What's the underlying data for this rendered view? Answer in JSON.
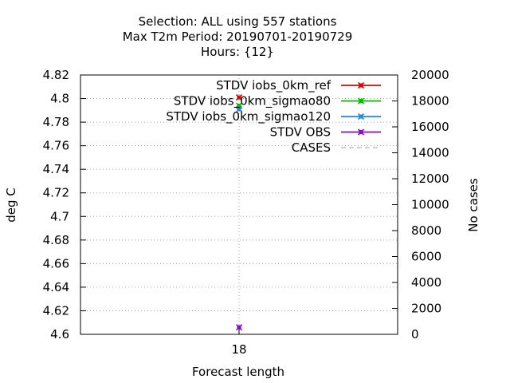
{
  "chart_data": {
    "type": "line",
    "title_lines": [
      "Selection: ALL using   557 stations",
      "Max T2m   Period: 20190701-20190729",
      "Hours: {12}"
    ],
    "xlabel": "Forecast length",
    "ylabel": "deg C",
    "y2label": "No cases",
    "x": [
      18
    ],
    "x_ticks": [
      "18"
    ],
    "ylim": [
      4.6,
      4.82
    ],
    "y_ticks": [
      "4.6",
      "4.62",
      "4.64",
      "4.66",
      "4.68",
      "4.7",
      "4.72",
      "4.74",
      "4.76",
      "4.78",
      "4.8",
      "4.82"
    ],
    "y2lim": [
      0,
      20000
    ],
    "y2_ticks": [
      "0",
      "2000",
      "4000",
      "6000",
      "8000",
      "10000",
      "12000",
      "14000",
      "16000",
      "18000",
      "20000"
    ],
    "grid": true,
    "legend_position": "top-right",
    "series": [
      {
        "name": "STDV iobs_0km_ref",
        "axis": "y",
        "color": "#e00000",
        "marker": "x",
        "values": [
          4.801
        ]
      },
      {
        "name": "STDV iobs_0km_sigmao80",
        "axis": "y",
        "color": "#00bb00",
        "marker": "x",
        "values": [
          4.794
        ]
      },
      {
        "name": "STDV iobs_0km_sigmao120",
        "axis": "y",
        "color": "#1e88e5",
        "marker": "x",
        "values": [
          4.791
        ]
      },
      {
        "name": "STDV OBS",
        "axis": "y",
        "color": "#9400d3",
        "marker": "x",
        "values": [
          4.606
        ]
      },
      {
        "name": "CASES",
        "axis": "y2",
        "color": "#a0a0a0",
        "marker": "none",
        "dashed": true,
        "values": [
          14400
        ]
      }
    ]
  }
}
